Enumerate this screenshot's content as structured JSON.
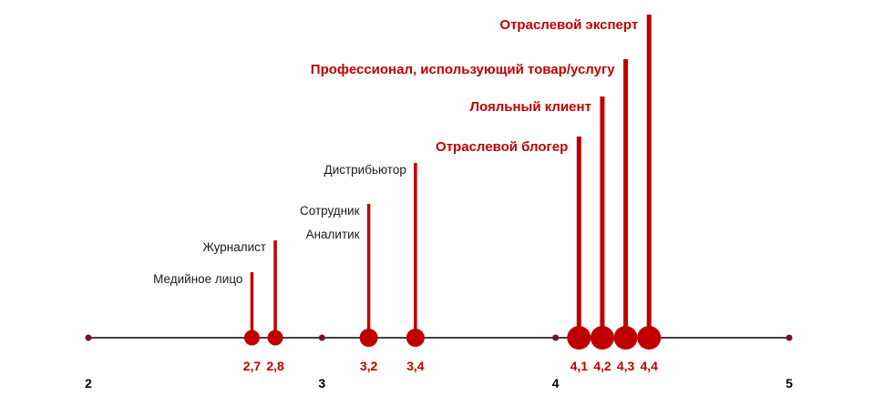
{
  "colors": {
    "accent": "#c00000",
    "axis": "#000000",
    "plain_label": "#1a1a1a",
    "tick_dot_fill": "#7a1020"
  },
  "chart_data": {
    "type": "scatter",
    "title": "",
    "xlabel": "",
    "ylabel": "",
    "xlim": [
      2,
      5
    ],
    "x_ticks": [
      {
        "value": 2,
        "label": "2"
      },
      {
        "value": 3,
        "label": "3"
      },
      {
        "value": 4,
        "label": "4"
      },
      {
        "value": 5,
        "label": "5"
      }
    ],
    "grid": false,
    "legend": "none",
    "points": [
      {
        "label": "Медийное лицо",
        "value": 2.7,
        "value_label": "2,7",
        "highlight": false,
        "rank": 1
      },
      {
        "label": "Журналист",
        "value": 2.8,
        "value_label": "2,8",
        "highlight": false,
        "rank": 2
      },
      {
        "label": "Сотрудник\nАналитик",
        "value": 3.2,
        "value_label": "3,2",
        "highlight": false,
        "rank": 3
      },
      {
        "label": "Дистрибьютор",
        "value": 3.4,
        "value_label": "3,4",
        "highlight": false,
        "rank": 4
      },
      {
        "label": "Отраслевой блогер",
        "value": 4.1,
        "value_label": "4,1",
        "highlight": true,
        "rank": 5
      },
      {
        "label": "Лояльный клиент",
        "value": 4.2,
        "value_label": "4,2",
        "highlight": true,
        "rank": 6
      },
      {
        "label": "Профессионал, использующий товар/услугу",
        "value": 4.3,
        "value_label": "4,3",
        "highlight": true,
        "rank": 7
      },
      {
        "label": "Отраслевой эксперт",
        "value": 4.4,
        "value_label": "4,4",
        "highlight": true,
        "rank": 8
      }
    ]
  }
}
